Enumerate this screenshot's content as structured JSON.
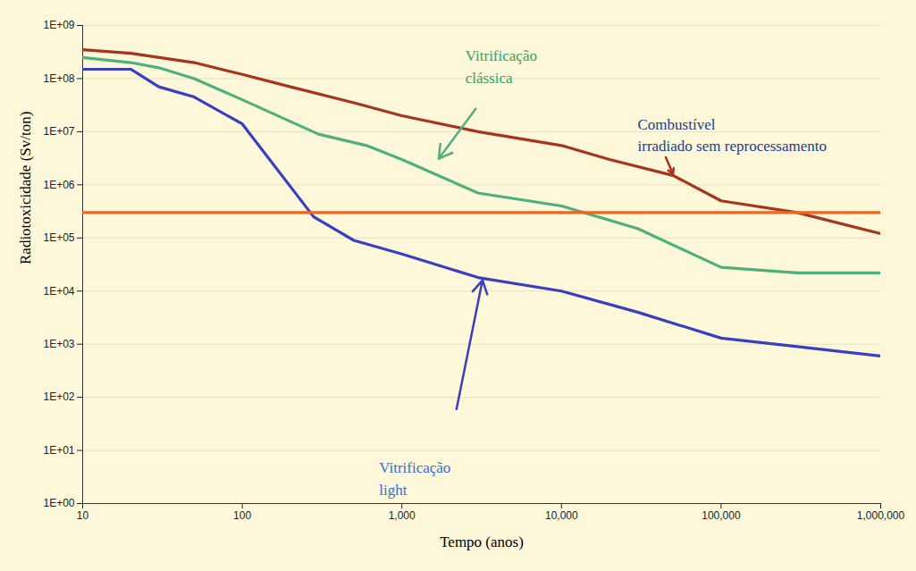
{
  "chart_data": {
    "type": "line",
    "x_label": "Tempo (anos)",
    "y_label": "Radiotoxicidade (Sv/ton)",
    "log": true,
    "grid": "y",
    "xlim": [
      10,
      1000000
    ],
    "xticks": [
      10,
      100,
      {
        "value": 1000,
        "label": "1,000"
      },
      {
        "value": 10000,
        "label": "10,000"
      },
      {
        "value": 100000,
        "label": "100,000"
      },
      {
        "value": 1000000,
        "label": "1,000,000"
      }
    ],
    "ylim": [
      1,
      1000000000
    ],
    "yticks": [
      {
        "value": 1,
        "label": "1E+00"
      },
      {
        "value": 10,
        "label": "1E+01"
      },
      {
        "value": 100,
        "label": "1E+02"
      },
      {
        "value": 1000,
        "label": "1E+03"
      },
      {
        "value": 10000,
        "label": "1E+04"
      },
      {
        "value": 100000,
        "label": "1E+05"
      },
      {
        "value": 1000000,
        "label": "1E+06"
      },
      {
        "value": 10000000,
        "label": "1E+07"
      },
      {
        "value": 100000000,
        "label": "1E+08"
      },
      {
        "value": 1000000000,
        "label": "1E+09"
      }
    ],
    "series": [
      {
        "name": "Combustível irradiado sem reprocessamento",
        "color": "#a8341e",
        "label_color": "#2b3a8c",
        "x": [
          10,
          20,
          50,
          100,
          200,
          500,
          1000,
          3000,
          10000,
          20000,
          50000,
          100000,
          300000,
          1000000
        ],
        "values": [
          350000000,
          300000000,
          200000000,
          120000000,
          70000000,
          35000000,
          20000000,
          10000000,
          5500000,
          3000000,
          1500000,
          500000,
          300000,
          120000
        ],
        "label_at": [
          30000,
          9400000
        ],
        "arrow": [
          [
            45000,
            3300000
          ],
          [
            50000,
            1600000
          ]
        ]
      },
      {
        "name": "Vitrificação clássica",
        "color": "#4fb07e",
        "label_color": "#3aa060",
        "x": [
          10,
          20,
          30,
          50,
          100,
          300,
          600,
          1000,
          3000,
          10000,
          30000,
          100000,
          300000,
          1000000
        ],
        "values": [
          250000000,
          200000000,
          160000000,
          100000000,
          40000000,
          9000000,
          5500000,
          3000000,
          700000,
          400000,
          150000,
          28000,
          22000,
          22000
        ],
        "label_at": [
          2500,
          180000000
        ],
        "arrow": [
          [
            2900,
            27000000
          ],
          [
            1700,
            3100000
          ]
        ]
      },
      {
        "name": "Vitrificação light",
        "color": "#3a3fbf",
        "label_color": "#3a6fd0",
        "x": [
          10,
          20,
          30,
          50,
          100,
          280,
          500,
          1000,
          3000,
          10000,
          30000,
          100000,
          300000,
          1000000
        ],
        "values": [
          150000000,
          150000000,
          70000000,
          45000000,
          14000000,
          250000,
          90000,
          50000,
          18000,
          10000,
          4000,
          1300,
          900,
          600
        ],
        "label_at": [
          720,
          3.2
        ],
        "arrow": [
          [
            2200,
            60
          ],
          [
            3200,
            16000
          ]
        ]
      },
      {
        "color": "#f0641e",
        "x": [
          10,
          1000000
        ],
        "values": [
          300000,
          300000
        ]
      }
    ]
  }
}
